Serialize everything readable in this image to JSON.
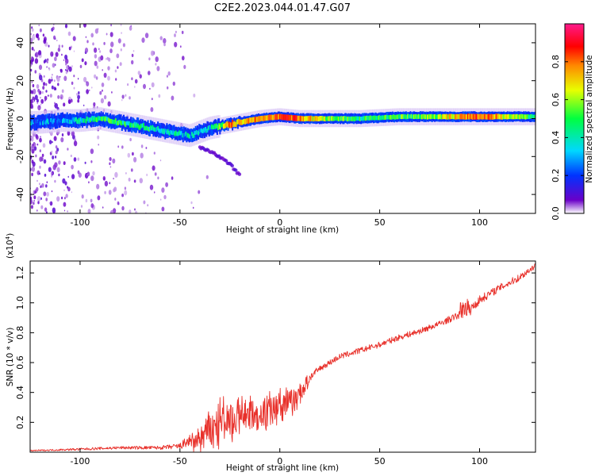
{
  "figure_title": "C2E2.2023.044.01.47.G07",
  "chart_data": [
    {
      "type": "heatmap",
      "xlabel": "Height of straight line (km)",
      "ylabel": "Frequency (Hz)",
      "xlim": [
        -125,
        128
      ],
      "ylim": [
        -50,
        50
      ],
      "xticks": [
        -100,
        -50,
        0,
        50,
        100
      ],
      "yticks": [
        -40,
        -20,
        0,
        20,
        40
      ],
      "colorbar": {
        "label": "Normalized spectral amplitude",
        "range": [
          0,
          1
        ],
        "ticks": [
          0.0,
          0.2,
          0.4,
          0.6,
          0.8
        ],
        "colors": [
          "#ffffff",
          "#6a00c8",
          "#0033ff",
          "#00d8ff",
          "#00ff40",
          "#e8ff00",
          "#ff8800",
          "#ff0000",
          "#ff1a8c"
        ]
      },
      "ridge": {
        "x": [
          -120,
          -110,
          -100,
          -90,
          -80,
          -70,
          -60,
          -50,
          -45,
          -40,
          -35,
          -30,
          -25,
          -20,
          -10,
          0,
          10,
          20,
          40,
          60,
          80,
          100,
          128
        ],
        "freq": [
          -2,
          -1,
          -1,
          0,
          -2,
          -4,
          -6,
          -8,
          -9,
          -7,
          -5,
          -4,
          -3,
          -2,
          0,
          1,
          0,
          0,
          0,
          1,
          1,
          1,
          1
        ],
        "amplitude": [
          0.25,
          0.3,
          0.35,
          0.45,
          0.45,
          0.45,
          0.4,
          0.35,
          0.35,
          0.3,
          0.35,
          0.55,
          0.75,
          0.7,
          0.75,
          0.85,
          0.8,
          0.6,
          0.45,
          0.5,
          0.6,
          0.85,
          0.45
        ]
      },
      "secondary_branch": {
        "x": [
          -40,
          -32,
          -25,
          -20
        ],
        "freq": [
          -15,
          -19,
          -24,
          -30
        ],
        "amplitude": 0.3
      },
      "noise_region_x": [
        -125,
        -55
      ]
    },
    {
      "type": "line",
      "xlabel": "Height of straight line (km)",
      "ylabel": "SNR (10 * v/v)",
      "yscale_label": "(x10",
      "yscale_exp": "4",
      "yscale_suffix": ")",
      "xlim": [
        -125,
        128
      ],
      "ylim": [
        0,
        1.28
      ],
      "xticks": [
        -100,
        -50,
        0,
        50,
        100
      ],
      "yticks": [
        0.2,
        0.4,
        0.6,
        0.8,
        1.0,
        1.2
      ],
      "ytick_labels": [
        "0.2",
        "0.4",
        "0.6",
        "0.8",
        "1.0",
        "1.2"
      ],
      "color": "#e8302a",
      "series": [
        {
          "x": [
            -125,
            -100,
            -80,
            -60,
            -50,
            -45,
            -40,
            -35,
            -30,
            -25,
            -20,
            -15,
            -10,
            -5,
            0,
            5,
            10,
            15,
            20,
            25,
            30,
            40,
            50,
            60,
            70,
            80,
            90,
            95,
            100,
            110,
            120,
            128
          ],
          "values": [
            0.01,
            0.02,
            0.03,
            0.03,
            0.04,
            0.08,
            0.13,
            0.2,
            0.25,
            0.26,
            0.27,
            0.29,
            0.3,
            0.33,
            0.35,
            0.38,
            0.42,
            0.5,
            0.56,
            0.6,
            0.64,
            0.68,
            0.72,
            0.77,
            0.81,
            0.86,
            0.92,
            0.95,
            1.02,
            1.1,
            1.17,
            1.25
          ],
          "noise_amplitude": [
            0.004,
            0.008,
            0.01,
            0.012,
            0.02,
            0.05,
            0.08,
            0.12,
            0.14,
            0.14,
            0.13,
            0.12,
            0.11,
            0.1,
            0.1,
            0.09,
            0.09,
            0.03,
            0.02,
            0.02,
            0.02,
            0.02,
            0.02,
            0.02,
            0.02,
            0.02,
            0.025,
            0.04,
            0.03,
            0.025,
            0.025,
            0.02
          ]
        }
      ]
    }
  ]
}
